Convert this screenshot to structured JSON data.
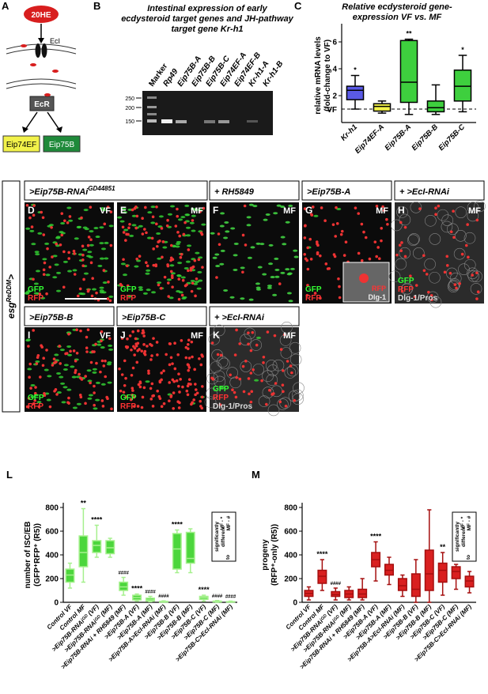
{
  "panel_a": {
    "letter": "A",
    "hormone": "20HE",
    "importer": "EcI",
    "receptor": "EcR",
    "targets": [
      "Eip74EF",
      "Eip75B"
    ]
  },
  "panel_b": {
    "letter": "B",
    "title": [
      "Intestinal expression of early",
      "ecdysteroid target genes and JH-pathway",
      "target gene Kr-h1"
    ],
    "lanes": [
      "Marker",
      "Rp49",
      "Eip75B-A",
      "Eip75B-B",
      "Eip75B-C",
      "Eip74EF-A",
      "Eip74EF-B",
      "Kr-h1-A",
      "Kr-h1-B"
    ],
    "marker_sizes": [
      250,
      200,
      150
    ]
  },
  "images": {
    "side_label": {
      "base": "esg",
      "superscript": "ReDDM",
      "suffix": ">"
    },
    "headers": [
      {
        "text": ">Eip75B-RNAi",
        "superscript": "GD44851"
      },
      {
        "text": "+ RH5849"
      },
      {
        "text": ">Eip75B-A"
      },
      {
        "text": "+ >EcI-RNAi"
      },
      {
        "text": ">Eip75B-B"
      },
      {
        "text": ">Eip75B-C"
      },
      {
        "text": "+ >EcI-RNAi"
      }
    ],
    "panels": [
      {
        "letter": "D",
        "condition": "VF",
        "channels": [
          "GFP",
          "RFP"
        ]
      },
      {
        "letter": "E",
        "condition": "MF",
        "channels": [
          "GFP",
          "RFP"
        ]
      },
      {
        "letter": "F",
        "condition": "MF",
        "channels": []
      },
      {
        "letter": "G",
        "condition": "MF",
        "channels": [
          "GFP",
          "RFP"
        ],
        "inset_channels": [
          "RFP",
          "Dlg-1"
        ]
      },
      {
        "letter": "H",
        "condition": "MF",
        "channels": [
          "GFP",
          "RFP",
          "Dlg-1/Pros"
        ]
      },
      {
        "letter": "I",
        "condition": "VF",
        "channels": [
          "GFP",
          "RFP"
        ]
      },
      {
        "letter": "J",
        "condition": "MF",
        "channels": [
          "GFP",
          "RFP"
        ]
      },
      {
        "letter": "K",
        "condition": "MF",
        "channels": [
          "GFP",
          "RFP",
          "Dlg-1/Pros"
        ]
      }
    ]
  },
  "chart_data": [
    {
      "type": "box",
      "panel": "C",
      "title": [
        "Relative ecdysteroid gene-",
        "expression VF vs. MF"
      ],
      "ylabel": [
        "relative mRNA levels",
        "(fold-change to VF)"
      ],
      "categories": [
        "Kr-h1",
        "Eip74EF-A",
        "Eip75B-A",
        "Eip75B-B",
        "Eip75B-C"
      ],
      "colors": [
        "#5a5ae6",
        "#f2f24a",
        "#3ecf3e",
        "#3ecf3e",
        "#3ecf3e"
      ],
      "boxes": [
        {
          "min": 1,
          "q1": 1.7,
          "median": 2.4,
          "q3": 2.7,
          "max": 3.5
        },
        {
          "min": 0.7,
          "q1": 0.85,
          "median": 1.2,
          "q3": 1.4,
          "max": 1.6
        },
        {
          "min": 0.6,
          "q1": 1.5,
          "median": 3.0,
          "q3": 6.1,
          "max": 6.2
        },
        {
          "min": 0.6,
          "q1": 0.8,
          "median": 1.1,
          "q3": 1.6,
          "max": 2.8
        },
        {
          "min": 0.8,
          "q1": 1.6,
          "median": 2.7,
          "q3": 3.9,
          "max": 5.0
        }
      ],
      "significance": [
        "*",
        null,
        "**",
        null,
        "*"
      ],
      "reference_line": {
        "value": 1,
        "label": "VF"
      },
      "ylim": [
        0,
        7
      ],
      "yticks": [
        2,
        4,
        6
      ]
    },
    {
      "type": "box",
      "panel": "L",
      "ylabel": [
        "number of ISC/EB",
        "(GFP⁺RFP⁺ (R5))"
      ],
      "categories": [
        "Control VF",
        "Control MF",
        ">Eip75B-RNAiᴳᴰ (VF)",
        ">Eip75B-RNAiᴳᴰ (MF)",
        ">Eip75B-RNAi + RH5849 (MF)",
        ">Eip75B-A (VF)",
        ">Eip75B-A (MF)",
        ">Eip75B-A>EcI-RNAi (MF)",
        ">Eip75B-B (VF)",
        ">Eip75B-B (MF)",
        ">Eip75B-C (VF)",
        ">Eip75B-C (MF)",
        ">Eip75B-C>EcI-RNAi (MF)"
      ],
      "color": "#4cd63c",
      "edge_color": "#a6f08e",
      "boxes": [
        {
          "min": 120,
          "q1": 170,
          "median": 230,
          "q3": 280,
          "max": 330
        },
        {
          "min": 170,
          "q1": 300,
          "median": 420,
          "q3": 560,
          "max": 790
        },
        {
          "min": 380,
          "q1": 420,
          "median": 480,
          "q3": 520,
          "max": 650
        },
        {
          "min": 380,
          "q1": 410,
          "median": 460,
          "q3": 520,
          "max": 540
        },
        {
          "min": 60,
          "q1": 100,
          "median": 130,
          "q3": 170,
          "max": 210
        },
        {
          "min": 10,
          "q1": 20,
          "median": 40,
          "q3": 60,
          "max": 70
        },
        {
          "min": 5,
          "q1": 10,
          "median": 20,
          "q3": 35,
          "max": 50
        },
        {
          "min": 0,
          "q1": 2,
          "median": 5,
          "q3": 8,
          "max": 12
        },
        {
          "min": 250,
          "q1": 280,
          "median": 450,
          "q3": 580,
          "max": 610
        },
        {
          "min": 250,
          "q1": 330,
          "median": 370,
          "q3": 590,
          "max": 620
        },
        {
          "min": 10,
          "q1": 25,
          "median": 40,
          "q3": 50,
          "max": 60
        },
        {
          "min": 0,
          "q1": 3,
          "median": 6,
          "q3": 10,
          "max": 15
        },
        {
          "min": 0,
          "q1": 2,
          "median": 4,
          "q3": 6,
          "max": 10
        }
      ],
      "significance": [
        null,
        "**",
        "****",
        null,
        "####",
        "****",
        "####",
        "####",
        "****",
        null,
        "****",
        "####",
        "####"
      ],
      "legend_note": [
        "significantly",
        "different",
        "to",
        "VF - *",
        "MF - #"
      ],
      "ylim": [
        0,
        800
      ],
      "yticks": [
        0,
        200,
        400,
        600,
        800
      ]
    },
    {
      "type": "box",
      "panel": "M",
      "ylabel": [
        "progeny",
        "(RFP⁺-only (R5))"
      ],
      "categories": [
        "Control VF",
        "Control MF",
        ">Eip75B-RNAiᴳᴰ (VF)",
        ">Eip75B-RNAiᴳᴰ (MF)",
        ">Eip75B-RNAi + RH5849 (MF)",
        ">Eip75B-A (VF)",
        ">Eip75B-A (MF)",
        ">Eip75B-A>EcI-RNAi (MF)",
        ">Eip75B-B (VF)",
        ">Eip75B-B (MF)",
        ">Eip75B-C (VF)",
        ">Eip75B-C (MF)",
        ">Eip75B-C>EcI-RNAi (MF)"
      ],
      "color": "#d92020",
      "edge_color": "#a50f0f",
      "boxes": [
        {
          "min": 20,
          "q1": 50,
          "median": 75,
          "q3": 100,
          "max": 130
        },
        {
          "min": 100,
          "q1": 160,
          "median": 220,
          "q3": 270,
          "max": 360
        },
        {
          "min": 20,
          "q1": 50,
          "median": 65,
          "q3": 90,
          "max": 120
        },
        {
          "min": 20,
          "q1": 40,
          "median": 70,
          "q3": 100,
          "max": 130
        },
        {
          "min": 20,
          "q1": 40,
          "median": 70,
          "q3": 110,
          "max": 200
        },
        {
          "min": 180,
          "q1": 300,
          "median": 360,
          "q3": 420,
          "max": 510
        },
        {
          "min": 150,
          "q1": 230,
          "median": 270,
          "q3": 320,
          "max": 380
        },
        {
          "min": 50,
          "q1": 100,
          "median": 140,
          "q3": 200,
          "max": 230
        },
        {
          "min": 0,
          "q1": 50,
          "median": 110,
          "q3": 240,
          "max": 360
        },
        {
          "min": 0,
          "q1": 100,
          "median": 240,
          "q3": 440,
          "max": 780
        },
        {
          "min": 60,
          "q1": 170,
          "median": 270,
          "q3": 330,
          "max": 420
        },
        {
          "min": 110,
          "q1": 200,
          "median": 260,
          "q3": 300,
          "max": 320
        },
        {
          "min": 80,
          "q1": 130,
          "median": 180,
          "q3": 220,
          "max": 260
        }
      ],
      "significance": [
        null,
        "****",
        "####",
        null,
        null,
        "****",
        null,
        null,
        null,
        null,
        "**",
        null,
        null
      ],
      "legend_note": [
        "significantly",
        "different",
        "to",
        "VF - *",
        "MF - #"
      ],
      "ylim": [
        0,
        800
      ],
      "yticks": [
        0,
        200,
        400,
        600,
        800
      ]
    }
  ]
}
